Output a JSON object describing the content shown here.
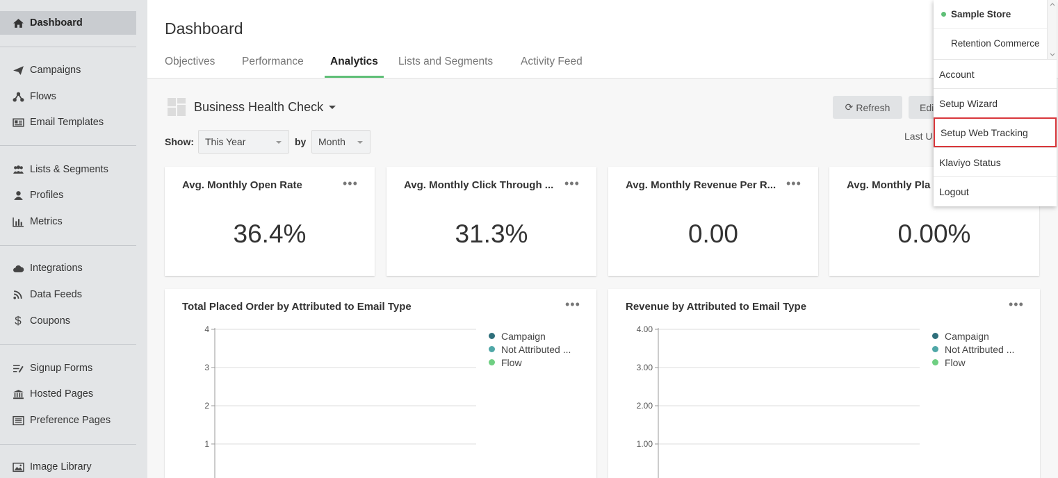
{
  "sidebar": {
    "items": [
      {
        "label": "Dashboard",
        "icon": "home-icon"
      },
      {
        "label": "Campaigns",
        "icon": "paper-plane-icon"
      },
      {
        "label": "Flows",
        "icon": "flows-icon"
      },
      {
        "label": "Email Templates",
        "icon": "newspaper-icon"
      },
      {
        "label": "Lists & Segments",
        "icon": "users-icon"
      },
      {
        "label": "Profiles",
        "icon": "user-icon"
      },
      {
        "label": "Metrics",
        "icon": "bar-chart-icon"
      },
      {
        "label": "Integrations",
        "icon": "cloud-icon"
      },
      {
        "label": "Data Feeds",
        "icon": "rss-icon"
      },
      {
        "label": "Coupons",
        "icon": "dollar-icon"
      },
      {
        "label": "Signup Forms",
        "icon": "form-list-icon"
      },
      {
        "label": "Hosted Pages",
        "icon": "bank-icon"
      },
      {
        "label": "Preference Pages",
        "icon": "list-alt-icon"
      },
      {
        "label": "Image Library",
        "icon": "image-icon"
      }
    ]
  },
  "header": {
    "title": "Dashboard",
    "tabs": [
      {
        "label": "Objectives"
      },
      {
        "label": "Performance"
      },
      {
        "label": "Analytics"
      },
      {
        "label": "Lists and Segments"
      },
      {
        "label": "Activity Feed"
      }
    ]
  },
  "dashboard": {
    "name": "Business Health Check",
    "refresh_label": "Refresh",
    "edit_label": "Edi",
    "last_updated": "Last U",
    "show_label": "Show:",
    "show_value": "This Year",
    "by_label": "by",
    "by_value": "Month"
  },
  "metrics": [
    {
      "title": "Avg. Monthly Open Rate",
      "value": "36.4%"
    },
    {
      "title": "Avg. Monthly Click Through ...",
      "value": "31.3%"
    },
    {
      "title": "Avg. Monthly Revenue Per R...",
      "value": "0.00"
    },
    {
      "title": "Avg. Monthly Pla",
      "value": "0.00%"
    }
  ],
  "chart_data": [
    {
      "type": "bar",
      "title": "Total Placed Order by Attributed to Email Type",
      "y_ticks": [
        "4",
        "3",
        "2",
        "1"
      ],
      "ylim": [
        0,
        4
      ],
      "grid": true,
      "legend_position": "top-right",
      "series": [
        {
          "name": "Campaign",
          "color": "#2e6f7b",
          "values": []
        },
        {
          "name": "Not Attributed ...",
          "color": "#4fa7a7",
          "values": []
        },
        {
          "name": "Flow",
          "color": "#6fcf82",
          "values": []
        }
      ]
    },
    {
      "type": "bar",
      "title": "Revenue by Attributed to Email Type",
      "y_ticks": [
        "4.00",
        "3.00",
        "2.00",
        "1.00"
      ],
      "ylim": [
        0,
        4
      ],
      "grid": true,
      "legend_position": "top-right",
      "series": [
        {
          "name": "Campaign",
          "color": "#2e6f7b",
          "values": []
        },
        {
          "name": "Not Attributed ...",
          "color": "#4fa7a7",
          "values": []
        },
        {
          "name": "Flow",
          "color": "#6fcf82",
          "values": []
        }
      ]
    }
  ],
  "dropdown": {
    "stores": [
      {
        "label": "Sample Store",
        "active": true
      },
      {
        "label": "Retention Commerce",
        "active": false
      }
    ],
    "items": [
      {
        "label": "Account"
      },
      {
        "label": "Setup Wizard"
      },
      {
        "label": "Setup Web Tracking",
        "highlighted": true
      },
      {
        "label": "Klaviyo Status"
      },
      {
        "label": "Logout"
      }
    ]
  },
  "colors": {
    "accent": "#5fbf77",
    "highlight_border": "#d9373b"
  }
}
